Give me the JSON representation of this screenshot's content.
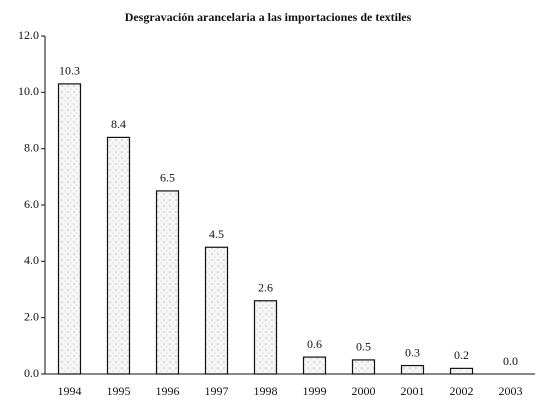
{
  "chart_data": {
    "type": "bar",
    "title": "Desgravación arancelaria a las importaciones de textiles",
    "categories": [
      "1994",
      "1995",
      "1996",
      "1997",
      "1998",
      "1999",
      "2000",
      "2001",
      "2002",
      "2003"
    ],
    "values": [
      10.3,
      8.4,
      6.5,
      4.5,
      2.6,
      0.6,
      0.5,
      0.3,
      0.2,
      0.0
    ],
    "value_labels": [
      "10.3",
      "8.4",
      "6.5",
      "4.5",
      "2.6",
      "0.6",
      "0.5",
      "0.3",
      "0.2",
      "0.0"
    ],
    "color": "#f2f2f2",
    "ylim": [
      0,
      12
    ],
    "yticks": [
      {
        "value": 0,
        "label": "0.0"
      },
      {
        "value": 2,
        "label": "2.0"
      },
      {
        "value": 4,
        "label": "4.0"
      },
      {
        "value": 6,
        "label": "6.0"
      },
      {
        "value": 8,
        "label": "8.0"
      },
      {
        "value": 10,
        "label": "10.0"
      },
      {
        "value": 12,
        "label": "12.0"
      }
    ],
    "grid": false
  }
}
